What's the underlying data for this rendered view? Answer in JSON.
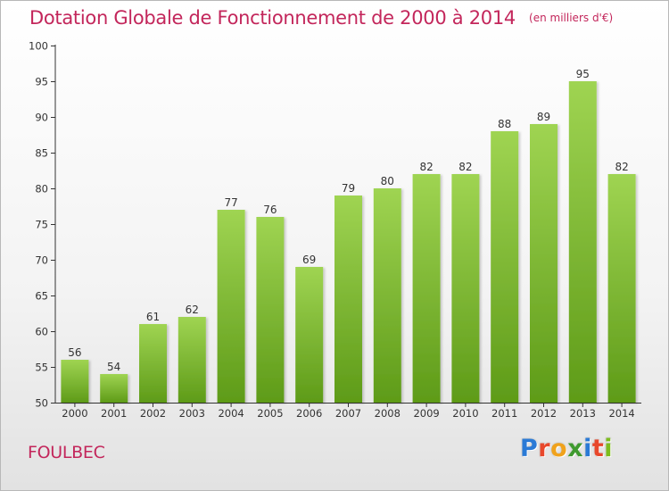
{
  "title": "Dotation Globale de Fonctionnement de 2000 à 2014",
  "subtitle": "(en milliers d'€)",
  "commune": "FOULBEC",
  "logo": {
    "text": "Proxiti",
    "letters": [
      {
        "ch": "P",
        "color": "#2a7ad6"
      },
      {
        "ch": "r",
        "color": "#e8482c"
      },
      {
        "ch": "o",
        "color": "#f0a21c"
      },
      {
        "ch": "x",
        "color": "#3f9a2f"
      },
      {
        "ch": "i",
        "color": "#2a7ad6"
      },
      {
        "ch": "t",
        "color": "#e8482c"
      },
      {
        "ch": "i",
        "color": "#7dbd1d"
      }
    ]
  },
  "colors": {
    "title": "#c3265b",
    "bar_top": "#9fd452",
    "bar_bottom": "#5e9b18",
    "axis": "#333333"
  },
  "chart_data": {
    "type": "bar",
    "title": "Dotation Globale de Fonctionnement de 2000 à 2014",
    "subtitle": "(en milliers d'€)",
    "categories": [
      "2000",
      "2001",
      "2002",
      "2003",
      "2004",
      "2005",
      "2006",
      "2007",
      "2008",
      "2009",
      "2010",
      "2011",
      "2012",
      "2013",
      "2014"
    ],
    "values": [
      56,
      54,
      61,
      62,
      77,
      76,
      69,
      79,
      80,
      82,
      82,
      88,
      89,
      95,
      82
    ],
    "ylim": [
      50,
      100
    ],
    "yticks": [
      50,
      55,
      60,
      65,
      70,
      75,
      80,
      85,
      90,
      95,
      100
    ],
    "grid": false,
    "data_labels": true,
    "xlabel": "",
    "ylabel": ""
  }
}
